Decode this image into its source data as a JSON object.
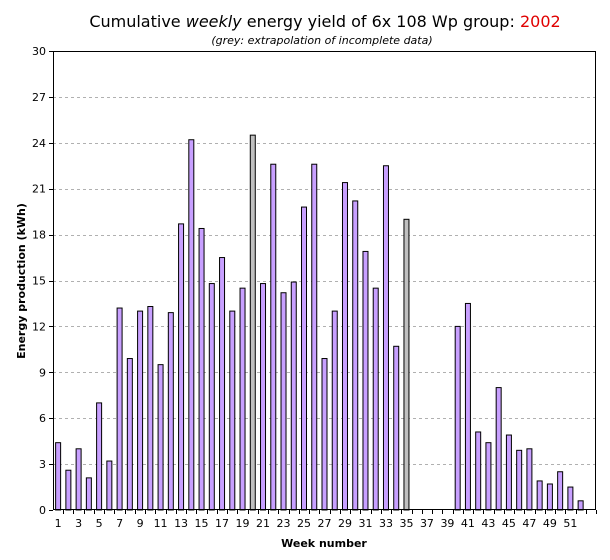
{
  "chart_data": {
    "type": "bar",
    "title_prefix": "Cumulative",
    "title_emph": "weekly",
    "title_rest": "energy yield of 6x 108 Wp group:",
    "title_year": "2002",
    "subtitle": "(grey: extrapolation of incomplete data)",
    "xlabel": "Week number",
    "ylabel": "Energy production (kWh)",
    "ylim": [
      0,
      30
    ],
    "yticks": [
      0,
      3,
      6,
      9,
      12,
      15,
      18,
      21,
      24,
      27,
      30
    ],
    "xticks": [
      "1",
      "3",
      "5",
      "7",
      "9",
      "11",
      "13",
      "15",
      "17",
      "19",
      "21",
      "23",
      "25",
      "27",
      "29",
      "31",
      "33",
      "35",
      "37",
      "39",
      "41",
      "43",
      "45",
      "47",
      "49",
      "51"
    ],
    "grid": "horizontal-dashed",
    "colors": {
      "complete": "#c8a0ff",
      "extrapolated": "#c0c0c0",
      "year": "#e00000"
    },
    "weeks": [
      1,
      2,
      3,
      4,
      5,
      6,
      7,
      8,
      9,
      10,
      11,
      12,
      13,
      14,
      15,
      16,
      17,
      18,
      19,
      20,
      21,
      22,
      23,
      24,
      25,
      26,
      27,
      28,
      29,
      30,
      31,
      32,
      33,
      34,
      35,
      36,
      37,
      38,
      39,
      40,
      41,
      42,
      43,
      44,
      45,
      46,
      47,
      48,
      49,
      50,
      51,
      52,
      53
    ],
    "values": [
      4.4,
      2.6,
      4.0,
      2.1,
      7.0,
      3.2,
      13.2,
      9.9,
      13.0,
      13.3,
      9.5,
      12.9,
      18.7,
      24.2,
      18.4,
      14.8,
      16.5,
      13.0,
      14.5,
      24.5,
      14.8,
      22.6,
      14.2,
      14.9,
      19.8,
      22.6,
      9.9,
      13.0,
      21.4,
      20.2,
      16.9,
      14.5,
      22.5,
      10.7,
      19.0,
      0,
      0,
      0,
      0,
      12.0,
      13.5,
      5.1,
      4.4,
      8.0,
      4.9,
      3.9,
      4.0,
      1.9,
      1.7,
      2.5,
      1.5,
      0.6,
      0
    ],
    "extrapolated": [
      20,
      35
    ]
  }
}
